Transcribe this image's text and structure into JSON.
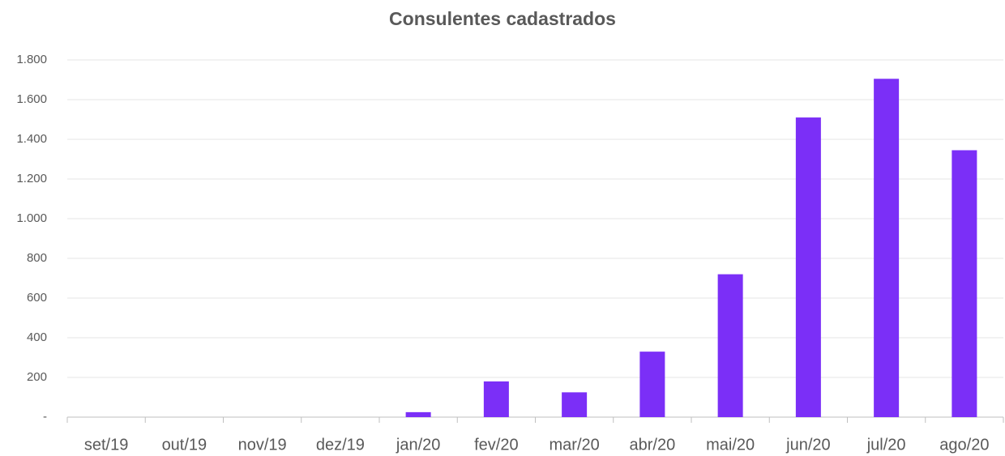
{
  "chart_data": {
    "type": "bar",
    "title": "Consulentes cadastrados",
    "categories": [
      "set/19",
      "out/19",
      "nov/19",
      "dez/19",
      "jan/20",
      "fev/20",
      "mar/20",
      "abr/20",
      "mai/20",
      "jun/20",
      "jul/20",
      "ago/20"
    ],
    "values": [
      0,
      0,
      0,
      0,
      25,
      180,
      125,
      330,
      720,
      1510,
      1705,
      1345
    ],
    "color": "#7b2ff7",
    "ylim": [
      0,
      1800
    ],
    "yticks": [
      {
        "value": 0,
        "label": "-"
      },
      200,
      400,
      600,
      800,
      {
        "value": 1000,
        "label": "1.000"
      },
      {
        "value": 1200,
        "label": "1.200"
      },
      {
        "value": 1400,
        "label": "1.400"
      },
      {
        "value": 1600,
        "label": "1.600"
      },
      {
        "value": 1800,
        "label": "1.800"
      }
    ],
    "grid": true
  }
}
